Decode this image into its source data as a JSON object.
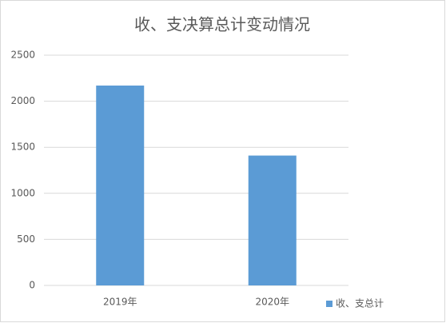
{
  "chart_data": {
    "type": "bar",
    "title": "收、支决算总计变动情况",
    "categories": [
      "2019年",
      "2020年"
    ],
    "series": [
      {
        "name": "收、支总计",
        "color": "#5b9bd5",
        "values": [
          2170,
          1410
        ]
      }
    ],
    "ylim": [
      0,
      2500
    ],
    "yticks": [
      0,
      500,
      1000,
      1500,
      2000,
      2500
    ],
    "grid": true,
    "legend": "bottom-right"
  }
}
